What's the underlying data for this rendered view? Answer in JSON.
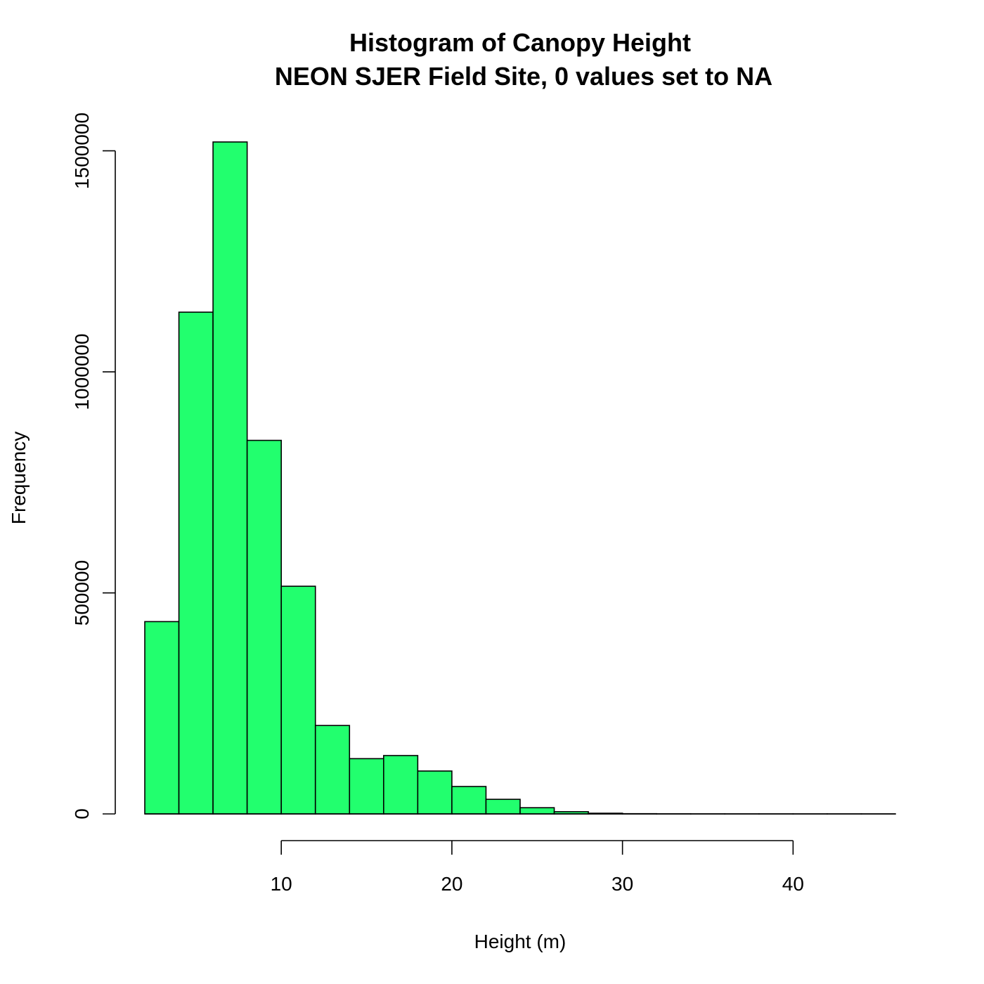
{
  "chart_data": {
    "type": "bar",
    "title": "Histogram of Canopy Height",
    "subtitle": "NEON SJER Field Site, 0 values set to NA",
    "xlabel": "Height (m)",
    "ylabel": "Frequency",
    "bin_edges": [
      2,
      4,
      6,
      8,
      10,
      12,
      14,
      16,
      18,
      20,
      22,
      24,
      26,
      28,
      30,
      32,
      34,
      36,
      38,
      40,
      42,
      44,
      46
    ],
    "values": [
      435000,
      1135000,
      1520000,
      845000,
      515000,
      200000,
      125000,
      132000,
      97000,
      62000,
      33000,
      14000,
      5000,
      1500,
      500,
      200,
      100,
      50,
      30,
      20,
      10,
      5
    ],
    "xlim": [
      2,
      46
    ],
    "ylim": [
      0,
      1520000
    ],
    "x_ticks": [
      10,
      20,
      30,
      40
    ],
    "x_tick_labels": [
      "10",
      "20",
      "30",
      "40"
    ],
    "y_ticks": [
      0,
      500000,
      1000000,
      1500000
    ],
    "y_tick_labels": [
      "0",
      "500000",
      "1000000",
      "1500000"
    ],
    "bar_color": "#22ff6e",
    "bar_border_color": "#000000",
    "grid": false
  }
}
